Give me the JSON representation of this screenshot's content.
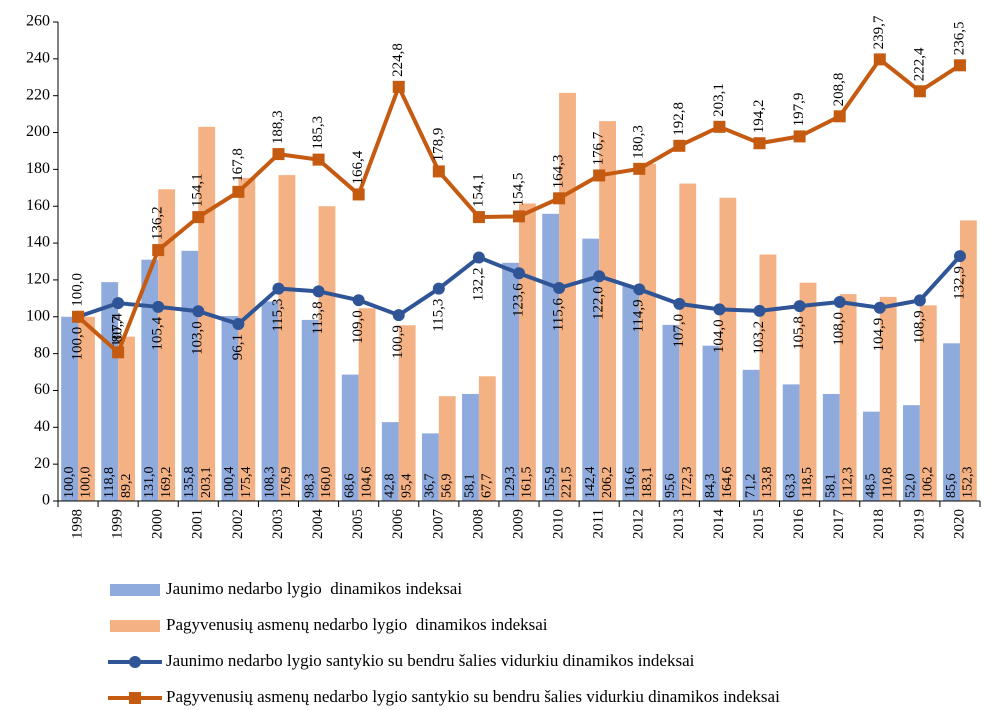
{
  "chart_data": {
    "type": "combo",
    "categories": [
      "1998",
      "1999",
      "2000",
      "2001",
      "2002",
      "2003",
      "2004",
      "2005",
      "2006",
      "2007",
      "2008",
      "2009",
      "2010",
      "2011",
      "2012",
      "2013",
      "2014",
      "2015",
      "2016",
      "2017",
      "2018",
      "2019",
      "2020"
    ],
    "ylim": [
      0,
      260
    ],
    "yticks": [
      0,
      20,
      40,
      60,
      80,
      100,
      120,
      140,
      160,
      180,
      200,
      220,
      240,
      260
    ],
    "series": [
      {
        "name": "Jaunimo nedarbo lygio  dinamikos indeksai",
        "type": "bar",
        "color": "#8faadc",
        "values": [
          100.0,
          118.8,
          131.0,
          135.8,
          100.4,
          108.3,
          98.3,
          68.6,
          42.8,
          36.7,
          58.1,
          129.3,
          155.9,
          142.4,
          116.6,
          95.6,
          84.3,
          71.2,
          63.3,
          58.1,
          48.5,
          52.0,
          85.6
        ],
        "value_labels": [
          "100,0",
          "118,8",
          "131,0",
          "135,8",
          "100,4",
          "108,3",
          "98,3",
          "68,6",
          "42,8",
          "36,7",
          "58,1",
          "129,3",
          "155,9",
          "142,4",
          "116,6",
          "95,6",
          "84,3",
          "71,2",
          "63,3",
          "58,1",
          "48,5",
          "52,0",
          "85,6"
        ]
      },
      {
        "name": "Pagyvenusių asmenų nedarbo lygio  dinamikos indeksai",
        "type": "bar",
        "color": "#f4b183",
        "values": [
          100.0,
          89.2,
          169.2,
          203.1,
          175.4,
          176.9,
          160.0,
          104.6,
          95.4,
          56.9,
          67.7,
          161.5,
          221.5,
          206.2,
          183.1,
          172.3,
          164.6,
          133.8,
          118.5,
          112.3,
          110.8,
          106.2,
          152.3
        ],
        "value_labels": [
          "100,0",
          "89,2",
          "169,2",
          "203,1",
          "175,4",
          "176,9",
          "160,0",
          "104,6",
          "95,4",
          "56,9",
          "67,7",
          "161,5",
          "221,5",
          "206,2",
          "183,1",
          "172,3",
          "164,6",
          "133,8",
          "118,5",
          "112,3",
          "110,8",
          "106,2",
          "152,3"
        ]
      },
      {
        "name": "Jaunimo nedarbo lygio santykio su bendru šalies vidurkiu dinamikos indeksai",
        "type": "line",
        "color": "#2f5597",
        "marker": "circle",
        "values": [
          100.0,
          107.4,
          105.4,
          103.0,
          96.1,
          115.3,
          113.8,
          109.0,
          100.9,
          115.3,
          132.2,
          123.6,
          115.6,
          122.0,
          114.9,
          107.0,
          104.0,
          103.2,
          105.8,
          108.0,
          104.9,
          108.9,
          132.9
        ],
        "value_labels": [
          "100,0",
          "107,4",
          "105,4",
          "103,0",
          "96,1",
          "115,3",
          "113,8",
          "109,0",
          "100,9",
          "115,3",
          "132,2",
          "123,6",
          "115,6",
          "122,0",
          "114,9",
          "107,0",
          "104,0",
          "103,2",
          "105,8",
          "108,0",
          "104,9",
          "108,9",
          "132,9"
        ]
      },
      {
        "name": "Pagyvenusių asmenų nedarbo lygio santykio su bendru šalies vidurkiu dinamikos indeksai",
        "type": "line",
        "color": "#c55a11",
        "marker": "square",
        "values": [
          100.0,
          80.7,
          136.2,
          154.1,
          167.8,
          188.3,
          185.3,
          166.4,
          224.8,
          178.9,
          154.1,
          154.5,
          164.3,
          176.7,
          180.3,
          192.8,
          203.1,
          194.2,
          197.9,
          208.8,
          239.7,
          222.4,
          236.5
        ],
        "value_labels": [
          "100,0",
          "80,7",
          "136,2",
          "154,1",
          "167,8",
          "188,3",
          "185,3",
          "166,4",
          "224,8",
          "178,9",
          "154,1",
          "154,5",
          "164,3",
          "176,7",
          "180,3",
          "192,8",
          "203,1",
          "194,2",
          "197,9",
          "208,8",
          "239,7",
          "222,4",
          "236,5"
        ]
      }
    ]
  }
}
